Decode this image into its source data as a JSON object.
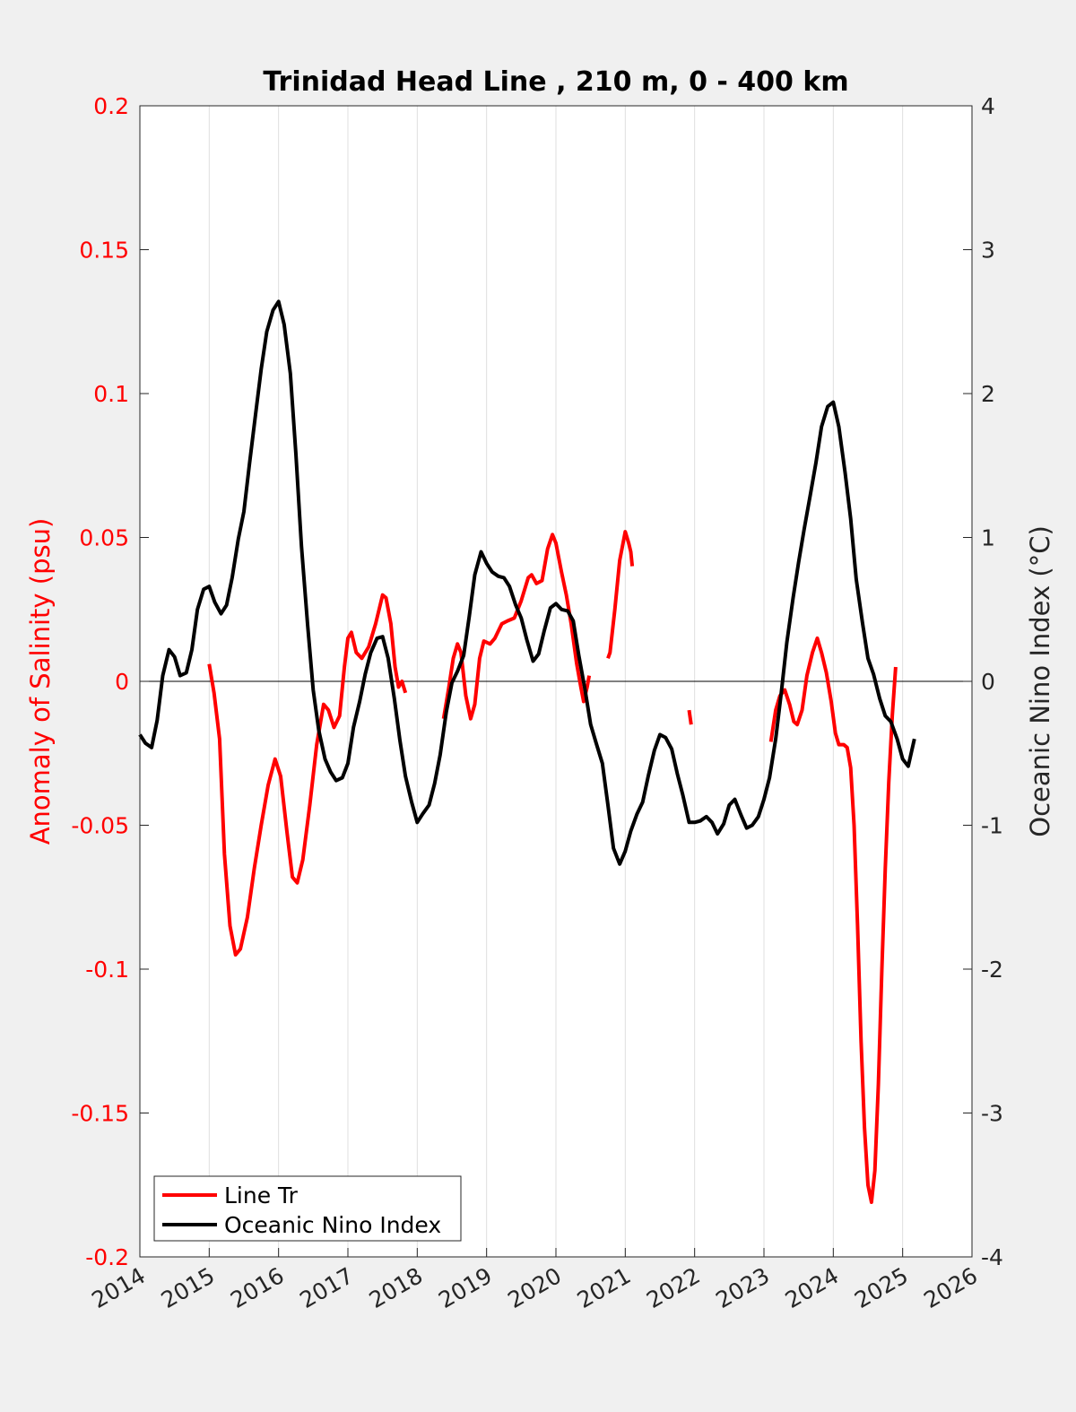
{
  "chart_data": {
    "type": "line",
    "title": "Trinidad Head Line , 210 m, 0 - 400 km",
    "xlim": [
      2014,
      2026
    ],
    "x_ticks": [
      "2014",
      "2015",
      "2016",
      "2017",
      "2018",
      "2019",
      "2020",
      "2021",
      "2022",
      "2023",
      "2024",
      "2025",
      "2026"
    ],
    "y_left": {
      "label": "Anomaly of Salinity (psu)",
      "ylim": [
        -0.2,
        0.2
      ],
      "ticks": [
        "-0.2",
        "-0.15",
        "-0.1",
        "-0.05",
        "0",
        "0.05",
        "0.1",
        "0.15",
        "0.2"
      ],
      "color": "#ff0000"
    },
    "y_right": {
      "label": "Oceanic Nino Index (°C)",
      "ylim": [
        -4,
        4
      ],
      "ticks": [
        "-4",
        "-3",
        "-2",
        "-1",
        "0",
        "1",
        "2",
        "3",
        "4"
      ],
      "color": "#000000"
    },
    "grid": "vertical",
    "zero_line": true,
    "legend": {
      "placement": "bottom-left"
    },
    "series": [
      {
        "name": "Line Tr",
        "axis": "left",
        "color": "#ff0000",
        "segments": [
          [
            [
              2015.0,
              0.006
            ],
            [
              2015.07,
              -0.004
            ],
            [
              2015.15,
              -0.02
            ],
            [
              2015.22,
              -0.06
            ],
            [
              2015.3,
              -0.085
            ],
            [
              2015.38,
              -0.095
            ],
            [
              2015.45,
              -0.093
            ],
            [
              2015.55,
              -0.082
            ],
            [
              2015.65,
              -0.065
            ],
            [
              2015.75,
              -0.05
            ],
            [
              2015.85,
              -0.036
            ],
            [
              2015.95,
              -0.027
            ],
            [
              2016.03,
              -0.033
            ],
            [
              2016.12,
              -0.052
            ],
            [
              2016.2,
              -0.068
            ],
            [
              2016.27,
              -0.07
            ],
            [
              2016.35,
              -0.062
            ],
            [
              2016.45,
              -0.043
            ],
            [
              2016.55,
              -0.022
            ],
            [
              2016.65,
              -0.008
            ],
            [
              2016.72,
              -0.01
            ],
            [
              2016.8,
              -0.016
            ],
            [
              2016.88,
              -0.012
            ],
            [
              2016.95,
              0.005
            ],
            [
              2017.0,
              0.015
            ],
            [
              2017.05,
              0.017
            ],
            [
              2017.12,
              0.01
            ],
            [
              2017.2,
              0.008
            ],
            [
              2017.3,
              0.012
            ],
            [
              2017.4,
              0.02
            ],
            [
              2017.5,
              0.03
            ],
            [
              2017.55,
              0.029
            ],
            [
              2017.62,
              0.02
            ],
            [
              2017.68,
              0.005
            ],
            [
              2017.73,
              -0.002
            ],
            [
              2017.78,
              0.0
            ],
            [
              2017.83,
              -0.004
            ]
          ],
          [
            [
              2018.38,
              -0.013
            ],
            [
              2018.45,
              -0.003
            ],
            [
              2018.52,
              0.008
            ],
            [
              2018.58,
              0.013
            ],
            [
              2018.63,
              0.01
            ],
            [
              2018.7,
              -0.005
            ],
            [
              2018.77,
              -0.013
            ],
            [
              2018.83,
              -0.008
            ],
            [
              2018.9,
              0.008
            ],
            [
              2018.96,
              0.014
            ],
            [
              2019.05,
              0.013
            ],
            [
              2019.12,
              0.015
            ],
            [
              2019.22,
              0.02
            ],
            [
              2019.3,
              0.021
            ],
            [
              2019.4,
              0.022
            ],
            [
              2019.5,
              0.028
            ],
            [
              2019.6,
              0.036
            ],
            [
              2019.65,
              0.037
            ],
            [
              2019.72,
              0.034
            ],
            [
              2019.8,
              0.035
            ],
            [
              2019.88,
              0.046
            ],
            [
              2019.95,
              0.051
            ],
            [
              2020.0,
              0.048
            ],
            [
              2020.08,
              0.038
            ],
            [
              2020.15,
              0.03
            ],
            [
              2020.22,
              0.02
            ],
            [
              2020.3,
              0.006
            ],
            [
              2020.36,
              -0.002
            ],
            [
              2020.4,
              -0.007
            ],
            [
              2020.45,
              -0.002
            ],
            [
              2020.48,
              0.002
            ]
          ],
          [
            [
              2020.75,
              0.008
            ],
            [
              2020.78,
              0.01
            ],
            [
              2020.85,
              0.025
            ],
            [
              2020.92,
              0.042
            ],
            [
              2021.0,
              0.052
            ],
            [
              2021.05,
              0.048
            ],
            [
              2021.08,
              0.045
            ],
            [
              2021.1,
              0.04
            ]
          ],
          [
            [
              2021.92,
              -0.01
            ],
            [
              2021.95,
              -0.015
            ]
          ],
          [
            [
              2023.1,
              -0.021
            ],
            [
              2023.17,
              -0.01
            ],
            [
              2023.23,
              -0.005
            ],
            [
              2023.3,
              -0.003
            ],
            [
              2023.37,
              -0.008
            ],
            [
              2023.43,
              -0.014
            ],
            [
              2023.48,
              -0.015
            ],
            [
              2023.55,
              -0.01
            ],
            [
              2023.62,
              0.002
            ],
            [
              2023.7,
              0.01
            ],
            [
              2023.77,
              0.015
            ],
            [
              2023.83,
              0.01
            ],
            [
              2023.9,
              0.003
            ],
            [
              2023.97,
              -0.007
            ],
            [
              2024.03,
              -0.018
            ],
            [
              2024.08,
              -0.022
            ],
            [
              2024.15,
              -0.022
            ],
            [
              2024.2,
              -0.023
            ],
            [
              2024.25,
              -0.03
            ],
            [
              2024.3,
              -0.05
            ],
            [
              2024.35,
              -0.085
            ],
            [
              2024.4,
              -0.125
            ],
            [
              2024.45,
              -0.155
            ],
            [
              2024.5,
              -0.175
            ],
            [
              2024.55,
              -0.181
            ],
            [
              2024.6,
              -0.17
            ],
            [
              2024.65,
              -0.14
            ],
            [
              2024.7,
              -0.1
            ],
            [
              2024.75,
              -0.065
            ],
            [
              2024.8,
              -0.035
            ],
            [
              2024.85,
              -0.012
            ],
            [
              2024.9,
              0.005
            ]
          ]
        ]
      },
      {
        "name": "Oceanic Nino Index",
        "axis": "right",
        "color": "#000000",
        "segments": [
          [
            [
              2014.0,
              -0.37
            ],
            [
              2014.08,
              -0.43
            ],
            [
              2014.17,
              -0.46
            ],
            [
              2014.25,
              -0.27
            ],
            [
              2014.33,
              0.04
            ],
            [
              2014.42,
              0.22
            ],
            [
              2014.5,
              0.17
            ],
            [
              2014.58,
              0.04
            ],
            [
              2014.67,
              0.06
            ],
            [
              2014.75,
              0.22
            ],
            [
              2014.83,
              0.5
            ],
            [
              2014.92,
              0.64
            ],
            [
              2015.0,
              0.66
            ],
            [
              2015.08,
              0.55
            ],
            [
              2015.17,
              0.47
            ],
            [
              2015.25,
              0.53
            ],
            [
              2015.33,
              0.72
            ],
            [
              2015.42,
              0.99
            ],
            [
              2015.5,
              1.18
            ],
            [
              2015.58,
              1.51
            ],
            [
              2015.67,
              1.86
            ],
            [
              2015.75,
              2.17
            ],
            [
              2015.83,
              2.43
            ],
            [
              2015.92,
              2.58
            ],
            [
              2016.0,
              2.64
            ],
            [
              2016.08,
              2.48
            ],
            [
              2016.17,
              2.14
            ],
            [
              2016.25,
              1.58
            ],
            [
              2016.33,
              0.94
            ],
            [
              2016.42,
              0.39
            ],
            [
              2016.5,
              -0.06
            ],
            [
              2016.58,
              -0.34
            ],
            [
              2016.67,
              -0.54
            ],
            [
              2016.75,
              -0.63
            ],
            [
              2016.83,
              -0.69
            ],
            [
              2016.92,
              -0.67
            ],
            [
              2017.0,
              -0.57
            ],
            [
              2017.08,
              -0.32
            ],
            [
              2017.17,
              -0.14
            ],
            [
              2017.25,
              0.05
            ],
            [
              2017.33,
              0.2
            ],
            [
              2017.42,
              0.3
            ],
            [
              2017.5,
              0.31
            ],
            [
              2017.58,
              0.16
            ],
            [
              2017.67,
              -0.12
            ],
            [
              2017.75,
              -0.41
            ],
            [
              2017.83,
              -0.66
            ],
            [
              2017.92,
              -0.84
            ],
            [
              2018.0,
              -0.98
            ],
            [
              2018.08,
              -0.92
            ],
            [
              2018.17,
              -0.86
            ],
            [
              2018.25,
              -0.71
            ],
            [
              2018.33,
              -0.51
            ],
            [
              2018.42,
              -0.21
            ],
            [
              2018.5,
              -0.01
            ],
            [
              2018.58,
              0.07
            ],
            [
              2018.67,
              0.18
            ],
            [
              2018.75,
              0.45
            ],
            [
              2018.83,
              0.74
            ],
            [
              2018.92,
              0.9
            ],
            [
              2019.0,
              0.82
            ],
            [
              2019.08,
              0.76
            ],
            [
              2019.17,
              0.73
            ],
            [
              2019.25,
              0.72
            ],
            [
              2019.33,
              0.66
            ],
            [
              2019.42,
              0.53
            ],
            [
              2019.5,
              0.44
            ],
            [
              2019.58,
              0.29
            ],
            [
              2019.67,
              0.14
            ],
            [
              2019.75,
              0.19
            ],
            [
              2019.83,
              0.35
            ],
            [
              2019.92,
              0.51
            ],
            [
              2020.0,
              0.54
            ],
            [
              2020.08,
              0.5
            ],
            [
              2020.17,
              0.49
            ],
            [
              2020.25,
              0.42
            ],
            [
              2020.33,
              0.18
            ],
            [
              2020.42,
              -0.06
            ],
            [
              2020.5,
              -0.3
            ],
            [
              2020.58,
              -0.43
            ],
            [
              2020.67,
              -0.57
            ],
            [
              2020.75,
              -0.86
            ],
            [
              2020.83,
              -1.16
            ],
            [
              2020.92,
              -1.27
            ],
            [
              2021.0,
              -1.18
            ],
            [
              2021.08,
              -1.04
            ],
            [
              2021.17,
              -0.92
            ],
            [
              2021.25,
              -0.84
            ],
            [
              2021.33,
              -0.66
            ],
            [
              2021.42,
              -0.48
            ],
            [
              2021.5,
              -0.37
            ],
            [
              2021.58,
              -0.39
            ],
            [
              2021.67,
              -0.47
            ],
            [
              2021.75,
              -0.64
            ],
            [
              2021.83,
              -0.79
            ],
            [
              2021.92,
              -0.98
            ],
            [
              2022.0,
              -0.98
            ],
            [
              2022.08,
              -0.97
            ],
            [
              2022.17,
              -0.94
            ],
            [
              2022.25,
              -0.98
            ],
            [
              2022.33,
              -1.06
            ],
            [
              2022.42,
              -0.99
            ],
            [
              2022.5,
              -0.86
            ],
            [
              2022.58,
              -0.82
            ],
            [
              2022.67,
              -0.93
            ],
            [
              2022.75,
              -1.02
            ],
            [
              2022.83,
              -1.0
            ],
            [
              2022.92,
              -0.94
            ],
            [
              2023.0,
              -0.82
            ],
            [
              2023.08,
              -0.67
            ],
            [
              2023.17,
              -0.4
            ],
            [
              2023.25,
              -0.08
            ],
            [
              2023.33,
              0.27
            ],
            [
              2023.42,
              0.58
            ],
            [
              2023.5,
              0.83
            ],
            [
              2023.58,
              1.06
            ],
            [
              2023.67,
              1.3
            ],
            [
              2023.75,
              1.52
            ],
            [
              2023.83,
              1.77
            ],
            [
              2023.92,
              1.91
            ],
            [
              2024.0,
              1.94
            ],
            [
              2024.08,
              1.77
            ],
            [
              2024.17,
              1.45
            ],
            [
              2024.25,
              1.13
            ],
            [
              2024.33,
              0.71
            ],
            [
              2024.42,
              0.41
            ],
            [
              2024.5,
              0.16
            ],
            [
              2024.58,
              0.05
            ],
            [
              2024.67,
              -0.12
            ],
            [
              2024.75,
              -0.24
            ],
            [
              2024.83,
              -0.28
            ],
            [
              2024.92,
              -0.4
            ],
            [
              2025.0,
              -0.54
            ],
            [
              2025.08,
              -0.59
            ],
            [
              2025.17,
              -0.4
            ]
          ]
        ]
      }
    ]
  }
}
